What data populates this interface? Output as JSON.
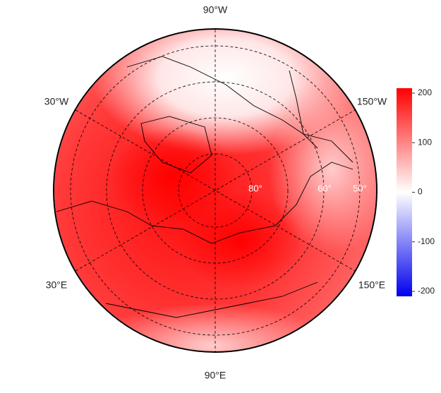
{
  "map": {
    "meridian_labels": [
      "90°W",
      "30°W",
      "150°W",
      "30°E",
      "150°E",
      "90°E"
    ],
    "latitude_labels": [
      "80°",
      "60°",
      "50°"
    ],
    "colorbar": {
      "ylim": [
        -210,
        210
      ],
      "ticks": [
        -200,
        -100,
        0,
        100,
        200
      ],
      "colors": [
        "#0000ee",
        "#ffffff",
        "#ff0000"
      ]
    }
  }
}
